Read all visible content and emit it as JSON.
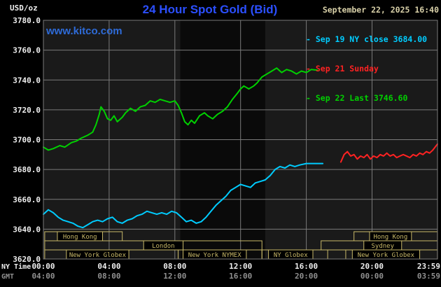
{
  "header": {
    "units": "USD/oz",
    "title": "24 Hour Spot Gold (Bid)",
    "datetime": "September 22, 2025 16:40",
    "watermark": "www.kitco.com",
    "legend": [
      {
        "label": "- Sep 19 NY close 3684.00",
        "color": "#00ccff"
      },
      {
        "label": "- Sep 21 Sunday",
        "color": "#ff2222"
      },
      {
        "label": "- Sep 22 Last 3746.60",
        "color": "#00d000"
      }
    ]
  },
  "colors": {
    "bg": "#000000",
    "plot_bg": "#1a1a1a",
    "band": "#0a0a0a",
    "grid": "#7a7a7a",
    "axis_text": "#f0f0f0",
    "gmt_text": "#909090",
    "session": "#c8b868",
    "title": "#2b4fff",
    "watermark": "#2e6bd8",
    "date": "#d8d0a8"
  },
  "chart_data": {
    "type": "line",
    "title": "24 Hour Spot Gold (Bid)",
    "ylabel": "USD/oz",
    "ylim": [
      3620,
      3780
    ],
    "y_ticks": [
      3780,
      3760,
      3740,
      3720,
      3700,
      3680,
      3660,
      3640,
      3620
    ],
    "grid": true,
    "legend_position": "top-right",
    "ny_label": "NY Time",
    "gmt_label": "GMT",
    "x_ticks": [
      {
        "h": 0,
        "ny": "00:00",
        "gmt": "04:00"
      },
      {
        "h": 4,
        "ny": "04:00",
        "gmt": "08:00"
      },
      {
        "h": 8,
        "ny": "08:00",
        "gmt": "12:00"
      },
      {
        "h": 12,
        "ny": "12:00",
        "gmt": "16:00"
      },
      {
        "h": 16,
        "ny": "16:00",
        "gmt": "20:00"
      },
      {
        "h": 20,
        "ny": "20:00",
        "gmt": "00:00"
      },
      {
        "h": 23.9833,
        "ny": "23:59",
        "gmt": "03:59"
      }
    ],
    "band": {
      "start": 8.33,
      "end": 13.5
    },
    "series": [
      {
        "name": "Sep 19 NY close",
        "close": 3684.0,
        "color": "#00ccff",
        "points": [
          [
            0,
            3650
          ],
          [
            0.3,
            3653
          ],
          [
            0.6,
            3651
          ],
          [
            0.9,
            3648
          ],
          [
            1.2,
            3646
          ],
          [
            1.5,
            3645
          ],
          [
            1.8,
            3644
          ],
          [
            2.1,
            3642
          ],
          [
            2.4,
            3641
          ],
          [
            2.7,
            3643
          ],
          [
            3,
            3645
          ],
          [
            3.3,
            3646
          ],
          [
            3.6,
            3645
          ],
          [
            3.9,
            3647
          ],
          [
            4.2,
            3648
          ],
          [
            4.5,
            3645
          ],
          [
            4.8,
            3644
          ],
          [
            5.1,
            3646
          ],
          [
            5.4,
            3647
          ],
          [
            5.7,
            3649
          ],
          [
            6,
            3650
          ],
          [
            6.3,
            3652
          ],
          [
            6.6,
            3651
          ],
          [
            6.9,
            3650
          ],
          [
            7.2,
            3651
          ],
          [
            7.5,
            3650
          ],
          [
            7.8,
            3652
          ],
          [
            8.1,
            3651
          ],
          [
            8.4,
            3648
          ],
          [
            8.7,
            3645
          ],
          [
            9,
            3646
          ],
          [
            9.3,
            3644
          ],
          [
            9.6,
            3645
          ],
          [
            9.9,
            3648
          ],
          [
            10.2,
            3652
          ],
          [
            10.5,
            3656
          ],
          [
            10.8,
            3659
          ],
          [
            11.1,
            3662
          ],
          [
            11.4,
            3666
          ],
          [
            11.7,
            3668
          ],
          [
            12,
            3670
          ],
          [
            12.3,
            3669
          ],
          [
            12.6,
            3668
          ],
          [
            12.9,
            3671
          ],
          [
            13.2,
            3672
          ],
          [
            13.5,
            3673
          ],
          [
            13.8,
            3676
          ],
          [
            14.1,
            3680
          ],
          [
            14.4,
            3682
          ],
          [
            14.7,
            3681
          ],
          [
            15,
            3683
          ],
          [
            15.3,
            3682
          ],
          [
            15.6,
            3683
          ],
          [
            16,
            3684
          ],
          [
            16.5,
            3684
          ],
          [
            17,
            3684
          ]
        ]
      },
      {
        "name": "Sep 21 Sunday",
        "color": "#ff2222",
        "points": [
          [
            18.1,
            3685
          ],
          [
            18.3,
            3690
          ],
          [
            18.5,
            3692
          ],
          [
            18.7,
            3689
          ],
          [
            18.9,
            3690
          ],
          [
            19.1,
            3687
          ],
          [
            19.3,
            3689
          ],
          [
            19.5,
            3688
          ],
          [
            19.7,
            3690
          ],
          [
            19.9,
            3687
          ],
          [
            20.1,
            3689
          ],
          [
            20.3,
            3688
          ],
          [
            20.5,
            3690
          ],
          [
            20.7,
            3689
          ],
          [
            20.9,
            3691
          ],
          [
            21.1,
            3689
          ],
          [
            21.3,
            3690
          ],
          [
            21.5,
            3688
          ],
          [
            21.7,
            3689
          ],
          [
            21.9,
            3690
          ],
          [
            22.1,
            3689
          ],
          [
            22.3,
            3688
          ],
          [
            22.5,
            3690
          ],
          [
            22.7,
            3689
          ],
          [
            22.9,
            3691
          ],
          [
            23.1,
            3690
          ],
          [
            23.3,
            3692
          ],
          [
            23.5,
            3691
          ],
          [
            23.7,
            3693
          ],
          [
            23.98,
            3697
          ]
        ]
      },
      {
        "name": "Sep 22 Last",
        "last": 3746.6,
        "color": "#00d000",
        "points": [
          [
            0,
            3695
          ],
          [
            0.3,
            3693
          ],
          [
            0.6,
            3694
          ],
          [
            1,
            3696
          ],
          [
            1.3,
            3695
          ],
          [
            1.7,
            3698
          ],
          [
            2,
            3699
          ],
          [
            2.3,
            3701
          ],
          [
            2.7,
            3703
          ],
          [
            3,
            3705
          ],
          [
            3.2,
            3710
          ],
          [
            3.4,
            3717
          ],
          [
            3.5,
            3722
          ],
          [
            3.7,
            3719
          ],
          [
            3.9,
            3714
          ],
          [
            4.1,
            3713
          ],
          [
            4.3,
            3716
          ],
          [
            4.5,
            3712
          ],
          [
            4.8,
            3715
          ],
          [
            5,
            3718
          ],
          [
            5.3,
            3721
          ],
          [
            5.6,
            3719
          ],
          [
            5.9,
            3722
          ],
          [
            6.2,
            3723
          ],
          [
            6.5,
            3726
          ],
          [
            6.8,
            3725
          ],
          [
            7.1,
            3727
          ],
          [
            7.4,
            3726
          ],
          [
            7.7,
            3725
          ],
          [
            8,
            3726
          ],
          [
            8.2,
            3723
          ],
          [
            8.4,
            3718
          ],
          [
            8.6,
            3712
          ],
          [
            8.8,
            3710
          ],
          [
            9,
            3713
          ],
          [
            9.2,
            3711
          ],
          [
            9.5,
            3716
          ],
          [
            9.8,
            3718
          ],
          [
            10,
            3716
          ],
          [
            10.3,
            3714
          ],
          [
            10.6,
            3717
          ],
          [
            10.9,
            3719
          ],
          [
            11.2,
            3722
          ],
          [
            11.5,
            3727
          ],
          [
            11.8,
            3731
          ],
          [
            12,
            3734
          ],
          [
            12.2,
            3736
          ],
          [
            12.5,
            3734
          ],
          [
            12.8,
            3736
          ],
          [
            13,
            3738
          ],
          [
            13.3,
            3742
          ],
          [
            13.6,
            3744
          ],
          [
            13.9,
            3746
          ],
          [
            14.2,
            3748
          ],
          [
            14.5,
            3745
          ],
          [
            14.8,
            3747
          ],
          [
            15.1,
            3746
          ],
          [
            15.4,
            3744
          ],
          [
            15.7,
            3746
          ],
          [
            16,
            3745
          ],
          [
            16.3,
            3747
          ],
          [
            16.67,
            3746.6
          ]
        ]
      }
    ],
    "sessions": [
      {
        "row": 0,
        "start": 0.08,
        "end": 4.8,
        "label": "Hong Kong",
        "lstart": 0.85,
        "lend": 3.6
      },
      {
        "row": 0,
        "start": 18.9,
        "end": 23.98,
        "label": "Hong Kong",
        "lstart": 19.85,
        "lend": 22.4
      },
      {
        "row": 1,
        "start": 0.08,
        "end": 13.3,
        "label": "London",
        "lstart": 6.1,
        "lend": 8.5
      },
      {
        "row": 1,
        "start": 16.9,
        "end": 23.98,
        "label": "Sydney",
        "lstart": 19.5,
        "lend": 21.8
      },
      {
        "row": 2,
        "start": 0.08,
        "end": 8.2,
        "label": "New York Globex",
        "lstart": 1.4,
        "lend": 5.2
      },
      {
        "row": 2,
        "start": 8.2,
        "end": 13.3,
        "label": "New York NYMEX",
        "lstart": 8.5,
        "lend": 12.35
      },
      {
        "row": 2,
        "start": 13.3,
        "end": 17.3,
        "label": "NY Globex",
        "lstart": 13.7,
        "lend": 16.4
      },
      {
        "row": 2,
        "start": 18.4,
        "end": 23.98,
        "label": "New York Globex",
        "lstart": 18.8,
        "lend": 22.9
      }
    ]
  }
}
